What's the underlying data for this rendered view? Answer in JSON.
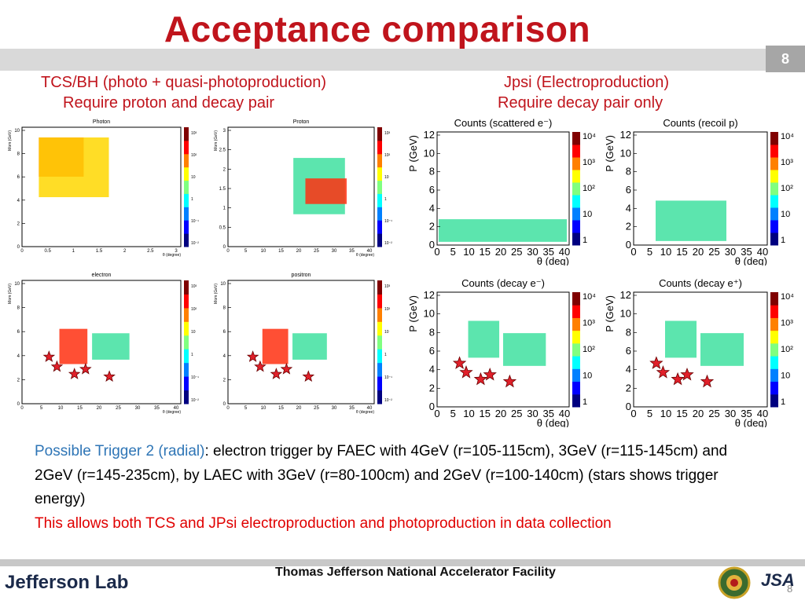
{
  "slide": {
    "title": "Acceptance comparison",
    "page_number": "8",
    "page_number_small": "8"
  },
  "headers": {
    "left_line1": "TCS/BH (photo + quasi-photoproduction)",
    "left_line2": "Require proton and decay pair",
    "right_line1": "Jpsi (Electroproduction)",
    "right_line2": "Require decay pair only"
  },
  "plots": {
    "photon": {
      "title": "Photon",
      "ylabel": "Mom (GeV)",
      "xlabel": "θ (degree)",
      "yticks": [
        "10",
        "8",
        "6",
        "4",
        "2",
        "0"
      ],
      "xticks": [
        "0",
        "0.5",
        "1",
        "1.5",
        "2",
        "2.5",
        "3"
      ],
      "zticks": [
        "10³",
        "10²",
        "10",
        "1",
        "10⁻¹",
        "10⁻²"
      ]
    },
    "proton": {
      "title": "Proton",
      "ylabel": "Mom (GeV)",
      "xlabel": "θ (degree)",
      "yticks": [
        "3",
        "2.5",
        "2",
        "1.5",
        "1",
        "0.5",
        "0"
      ],
      "xticks": [
        "0",
        "5",
        "10",
        "15",
        "20",
        "25",
        "30",
        "35",
        "40"
      ],
      "zticks": [
        "10³",
        "10²",
        "10",
        "1",
        "10⁻¹",
        "10⁻²"
      ]
    },
    "electron": {
      "title": "electron",
      "ylabel": "Mom (GeV)",
      "xlabel": "θ (degree)",
      "yticks": [
        "10",
        "8",
        "6",
        "4",
        "2",
        "0"
      ],
      "xticks": [
        "0",
        "5",
        "10",
        "15",
        "20",
        "25",
        "30",
        "35",
        "40"
      ],
      "zticks": [
        "10³",
        "10²",
        "10",
        "1",
        "10⁻¹",
        "10⁻²"
      ]
    },
    "positron": {
      "title": "positron",
      "ylabel": "Mom (GeV)",
      "xlabel": "θ (degree)",
      "yticks": [
        "10",
        "8",
        "6",
        "4",
        "2",
        "0"
      ],
      "xticks": [
        "0",
        "5",
        "10",
        "15",
        "20",
        "25",
        "30",
        "35",
        "40"
      ],
      "zticks": [
        "10³",
        "10²",
        "10",
        "1",
        "10⁻¹",
        "10⁻²"
      ]
    },
    "scattered_e": {
      "title": "Counts (scattered e⁻)",
      "ylabel": "P (GeV)",
      "xlabel": "θ (deg)",
      "yticks": [
        "12",
        "10",
        "8",
        "6",
        "4",
        "2",
        "0"
      ],
      "xticks": [
        "0",
        "5",
        "10",
        "15",
        "20",
        "25",
        "30",
        "35",
        "40"
      ],
      "zticks": [
        "10⁴",
        "10³",
        "10²",
        "10",
        "1"
      ]
    },
    "recoil_p": {
      "title": "Counts (recoil p)",
      "ylabel": "P (GeV)",
      "xlabel": "θ (deg)",
      "yticks": [
        "12",
        "10",
        "8",
        "6",
        "4",
        "2",
        "0"
      ],
      "xticks": [
        "0",
        "5",
        "10",
        "15",
        "20",
        "25",
        "30",
        "35",
        "40"
      ],
      "zticks": [
        "10⁴",
        "10³",
        "10²",
        "10",
        "1"
      ]
    },
    "decay_e_minus": {
      "title": "Counts (decay e⁻)",
      "ylabel": "P (GeV)",
      "xlabel": "θ (deg)",
      "yticks": [
        "12",
        "10",
        "8",
        "6",
        "4",
        "2",
        "0"
      ],
      "xticks": [
        "0",
        "5",
        "10",
        "15",
        "20",
        "25",
        "30",
        "35",
        "40"
      ],
      "zticks": [
        "10⁴",
        "10³",
        "10²",
        "10",
        "1"
      ]
    },
    "decay_e_plus": {
      "title": "Counts (decay e⁺)",
      "ylabel": "P (GeV)",
      "xlabel": "θ (deg)",
      "yticks": [
        "12",
        "10",
        "8",
        "6",
        "4",
        "2",
        "0"
      ],
      "xticks": [
        "0",
        "5",
        "10",
        "15",
        "20",
        "25",
        "30",
        "35",
        "40"
      ],
      "zticks": [
        "10⁴",
        "10³",
        "10²",
        "10",
        "1"
      ]
    }
  },
  "body": {
    "trigger_label": "Possible Trigger 2 (radial)",
    "trigger_text": ": electron trigger by FAEC with 4GeV (r=105-115cm), 3GeV (r=115-145cm) and 2GeV (r=145-235cm), by LAEC with 3GeV (r=80-100cm) and 2GeV (r=100-140cm) (stars shows trigger energy)",
    "highlight": "This allows both TCS and JPsi electroproduction and photoproduction in data collection"
  },
  "footer": {
    "lab_logo": "Jefferson Lab",
    "facility": "Thomas Jefferson National Accelerator Facility",
    "jsa_logo": "JSA"
  },
  "colors": {
    "title": "#c0141c",
    "trigger_blue": "#2e75b6",
    "highlight_red": "#e00000"
  }
}
